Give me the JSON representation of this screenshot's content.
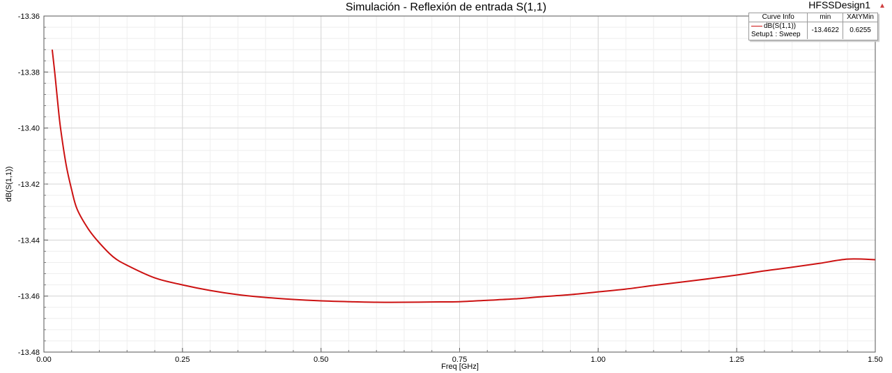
{
  "design_name": "HFSSDesign1",
  "design_marker_icon": "triangle-up-icon",
  "chart_data": {
    "type": "line",
    "title": "Simulación - Reflexión de entrada S(1,1)",
    "xlabel": "Freq [GHz]",
    "ylabel": "dB(S(1,1))",
    "xlim": [
      0.0,
      1.5
    ],
    "ylim": [
      -13.48,
      -13.36
    ],
    "xticks": [
      "0.00",
      "0.25",
      "0.50",
      "0.75",
      "1.00",
      "1.25",
      "1.50"
    ],
    "yticks": [
      "-13.36",
      "-13.38",
      "-13.40",
      "-13.42",
      "-13.44",
      "-13.46",
      "-13.48"
    ],
    "grid": true,
    "legend_position": "top-right",
    "series": [
      {
        "name": "dB(S(1,1))",
        "color": "#cc1111",
        "x": [
          0.015,
          0.02,
          0.025,
          0.03,
          0.04,
          0.05,
          0.06,
          0.08,
          0.1,
          0.125,
          0.15,
          0.2,
          0.25,
          0.3,
          0.35,
          0.4,
          0.45,
          0.5,
          0.55,
          0.6,
          0.65,
          0.7,
          0.75,
          0.8,
          0.85,
          0.9,
          0.95,
          1.0,
          1.05,
          1.1,
          1.15,
          1.2,
          1.25,
          1.3,
          1.35,
          1.4,
          1.45,
          1.5
        ],
        "y": [
          -13.372,
          -13.381,
          -13.391,
          -13.4,
          -13.413,
          -13.422,
          -13.429,
          -13.436,
          -13.441,
          -13.446,
          -13.449,
          -13.4535,
          -13.456,
          -13.458,
          -13.4595,
          -13.4605,
          -13.4612,
          -13.4617,
          -13.462,
          -13.4622,
          -13.4622,
          -13.4621,
          -13.462,
          -13.4615,
          -13.461,
          -13.4602,
          -13.4595,
          -13.4585,
          -13.4575,
          -13.4562,
          -13.455,
          -13.4538,
          -13.4525,
          -13.451,
          -13.4497,
          -13.4483,
          -13.4468,
          -13.447
        ]
      }
    ]
  },
  "legend_table": {
    "headers": [
      "Curve Info",
      "min",
      "XAtYMin"
    ],
    "rows": [
      {
        "name": "dB(S(1,1))",
        "sub": "Setup1 : Sweep",
        "min": "-13.4622",
        "xatymin": "0.6255"
      }
    ]
  }
}
